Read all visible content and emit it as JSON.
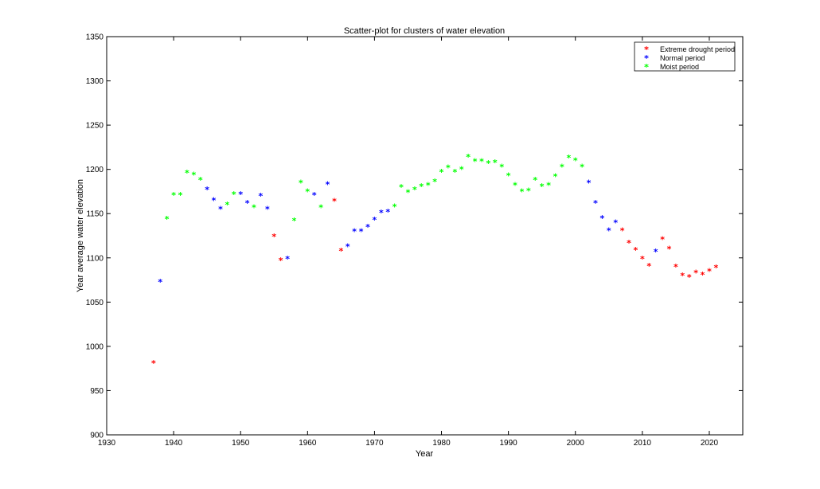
{
  "chart_data": {
    "type": "scatter",
    "title": "Scatter-plot for clusters of water elevation",
    "xlabel": "Year",
    "ylabel": "Year average water elevation",
    "xlim": [
      1930,
      2025
    ],
    "ylim": [
      900,
      1350
    ],
    "xticks": [
      1930,
      1940,
      1950,
      1960,
      1970,
      1980,
      1990,
      2000,
      2010,
      2020
    ],
    "yticks": [
      900,
      950,
      1000,
      1050,
      1100,
      1150,
      1200,
      1250,
      1300,
      1350
    ],
    "grid": false,
    "legend_position": "top-right",
    "marker": "*",
    "series": [
      {
        "name": "Extreme drought period",
        "color": "#ff0000",
        "points": [
          [
            1937,
            981
          ],
          [
            1955,
            1124
          ],
          [
            1956,
            1097
          ],
          [
            1964,
            1164
          ],
          [
            1965,
            1108
          ],
          [
            2007,
            1131
          ],
          [
            2008,
            1117
          ],
          [
            2009,
            1109
          ],
          [
            2010,
            1099
          ],
          [
            2011,
            1091
          ],
          [
            2013,
            1121
          ],
          [
            2014,
            1110
          ],
          [
            2015,
            1090
          ],
          [
            2016,
            1080
          ],
          [
            2017,
            1078
          ],
          [
            2018,
            1083
          ],
          [
            2019,
            1081
          ],
          [
            2020,
            1085
          ],
          [
            2021,
            1089
          ]
        ]
      },
      {
        "name": "Normal period",
        "color": "#0000ff",
        "points": [
          [
            1938,
            1073
          ],
          [
            1945,
            1177
          ],
          [
            1946,
            1165
          ],
          [
            1947,
            1155
          ],
          [
            1950,
            1172
          ],
          [
            1951,
            1162
          ],
          [
            1953,
            1170
          ],
          [
            1954,
            1155
          ],
          [
            1957,
            1099
          ],
          [
            1961,
            1171
          ],
          [
            1963,
            1183
          ],
          [
            1966,
            1113
          ],
          [
            1967,
            1130
          ],
          [
            1968,
            1130
          ],
          [
            1969,
            1135
          ],
          [
            1970,
            1143
          ],
          [
            1971,
            1151
          ],
          [
            1972,
            1152
          ],
          [
            2002,
            1185
          ],
          [
            2003,
            1162
          ],
          [
            2004,
            1145
          ],
          [
            2005,
            1131
          ],
          [
            2006,
            1140
          ],
          [
            2012,
            1107
          ]
        ]
      },
      {
        "name": "Moist period",
        "color": "#00ff00",
        "points": [
          [
            1939,
            1144
          ],
          [
            1940,
            1171
          ],
          [
            1941,
            1171
          ],
          [
            1942,
            1196
          ],
          [
            1943,
            1194
          ],
          [
            1944,
            1188
          ],
          [
            1948,
            1160
          ],
          [
            1949,
            1172
          ],
          [
            1952,
            1157
          ],
          [
            1958,
            1142
          ],
          [
            1959,
            1185
          ],
          [
            1960,
            1175
          ],
          [
            1962,
            1157
          ],
          [
            1973,
            1158
          ],
          [
            1974,
            1180
          ],
          [
            1975,
            1174
          ],
          [
            1976,
            1177
          ],
          [
            1977,
            1181
          ],
          [
            1978,
            1182
          ],
          [
            1979,
            1186
          ],
          [
            1980,
            1197
          ],
          [
            1981,
            1202
          ],
          [
            1982,
            1197
          ],
          [
            1983,
            1200
          ],
          [
            1984,
            1214
          ],
          [
            1985,
            1209
          ],
          [
            1986,
            1209
          ],
          [
            1987,
            1207
          ],
          [
            1988,
            1208
          ],
          [
            1989,
            1203
          ],
          [
            1990,
            1193
          ],
          [
            1991,
            1182
          ],
          [
            1992,
            1175
          ],
          [
            1993,
            1176
          ],
          [
            1994,
            1188
          ],
          [
            1995,
            1181
          ],
          [
            1996,
            1182
          ],
          [
            1997,
            1192
          ],
          [
            1998,
            1203
          ],
          [
            1999,
            1213
          ],
          [
            2000,
            1210
          ],
          [
            2001,
            1203
          ]
        ]
      }
    ]
  }
}
